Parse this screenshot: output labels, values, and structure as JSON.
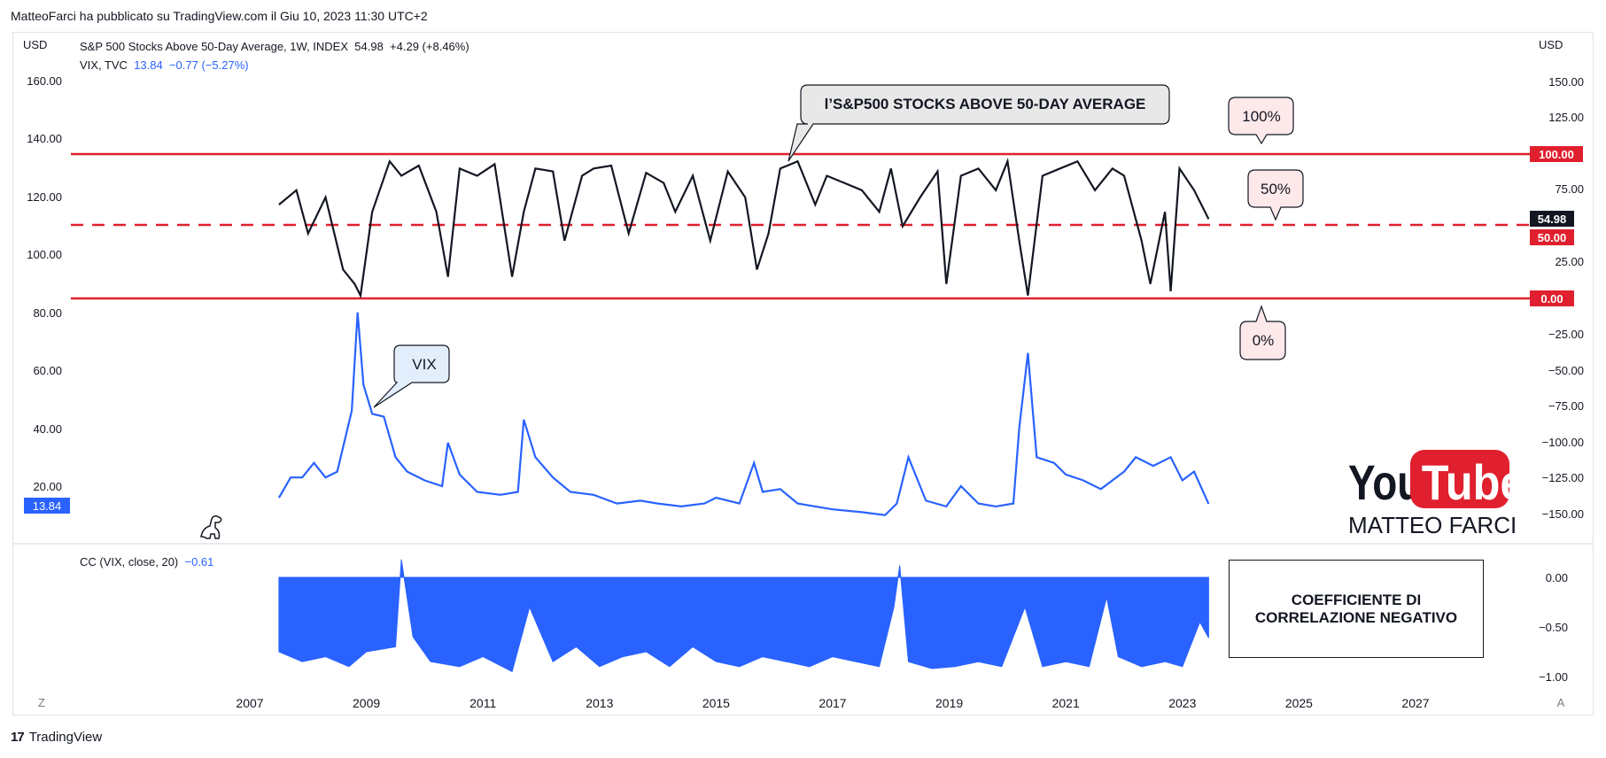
{
  "header": {
    "text": "MatteoFarci ha pubblicato su TradingView.com il Giu 10, 2023 11:30 UTC+2"
  },
  "footer": {
    "brand": "TradingView"
  },
  "colors": {
    "price": "#131722",
    "vix": "#2962ff",
    "hline": "#e0202e",
    "label_bg": "#fde8ea",
    "cc": "#2962ff"
  },
  "legend": {
    "main_name": "S&P 500 Stocks Above 50-Day Average, 1W, INDEX",
    "main_value": "54.98",
    "main_change": "+4.29 (+8.46%)",
    "vix_name": "VIX, TVC",
    "vix_value": "13.84",
    "vix_change": "−0.77 (−5.27%)",
    "cc_name": "CC (VIX, close, 20)",
    "cc_value": "−0.61"
  },
  "left_axis": {
    "unit": "USD",
    "ticks": [
      "160.00",
      "140.00",
      "120.00",
      "100.00",
      "80.00",
      "60.00",
      "40.00",
      "20.00"
    ],
    "last_label": "13.84"
  },
  "right_axis": {
    "unit": "USD",
    "ticks": [
      "150.00",
      "125.00",
      "100.00",
      "75.00",
      "50.00",
      "25.00",
      "0.00",
      "−25.00",
      "−50.00",
      "−75.00",
      "−100.00",
      "−125.00",
      "−150.00"
    ],
    "labels": {
      "last": "54.98",
      "hl_top": "100.00",
      "hl_mid": "50.00",
      "hl_bottom": "0.00"
    }
  },
  "cc_axis": {
    "ticks": [
      "0.00",
      "−0.50",
      "−1.00"
    ]
  },
  "x_axis": {
    "ticks": [
      "2007",
      "2009",
      "2011",
      "2013",
      "2015",
      "2017",
      "2019",
      "2021",
      "2023",
      "2025",
      "2027"
    ],
    "left_btn": "Z",
    "right_btn": "A"
  },
  "annotations": {
    "title_callout": "l’S&P500 STOCKS ABOVE 50-DAY AVERAGE",
    "vix_callout": "VIX",
    "pct100": "100%",
    "pct50": "50%",
    "pct0": "0%",
    "corr_line1": "COEFFICIENTE DI",
    "corr_line2": "CORRELAZIONE NEGATIVO",
    "yt_word1": "You",
    "yt_word2": "Tube",
    "yt_name": "MATTEO FARCI"
  },
  "chart_data": [
    {
      "type": "line",
      "title": "S&P 500 Stocks Above 50-Day Average, 1W, INDEX",
      "x_range": [
        2007.5,
        2023.45
      ],
      "ylim": [
        0,
        100
      ],
      "hlines": [
        100,
        50,
        0
      ],
      "series": [
        {
          "name": "S&P 500 Stocks Above 50-Day Average",
          "x": [
            2007.5,
            2007.8,
            2008.0,
            2008.3,
            2008.6,
            2008.8,
            2008.9,
            2009.1,
            2009.4,
            2009.6,
            2009.9,
            2010.2,
            2010.4,
            2010.6,
            2010.9,
            2011.2,
            2011.5,
            2011.7,
            2011.9,
            2012.2,
            2012.4,
            2012.7,
            2012.9,
            2013.2,
            2013.5,
            2013.8,
            2014.1,
            2014.3,
            2014.6,
            2014.9,
            2015.2,
            2015.5,
            2015.7,
            2015.9,
            2016.1,
            2016.4,
            2016.7,
            2016.9,
            2017.2,
            2017.5,
            2017.8,
            2018.0,
            2018.2,
            2018.5,
            2018.8,
            2018.95,
            2019.2,
            2019.5,
            2019.8,
            2020.0,
            2020.2,
            2020.35,
            2020.6,
            2020.9,
            2021.2,
            2021.5,
            2021.8,
            2022.0,
            2022.3,
            2022.45,
            2022.7,
            2022.8,
            2022.95,
            2023.2,
            2023.45
          ],
          "y": [
            65,
            75,
            45,
            70,
            20,
            10,
            2,
            60,
            95,
            85,
            92,
            60,
            15,
            90,
            85,
            93,
            15,
            60,
            90,
            88,
            40,
            85,
            90,
            92,
            45,
            87,
            80,
            60,
            85,
            40,
            88,
            70,
            20,
            45,
            90,
            95,
            65,
            85,
            80,
            75,
            60,
            90,
            50,
            70,
            88,
            10,
            85,
            90,
            75,
            95,
            40,
            2,
            85,
            90,
            95,
            75,
            90,
            85,
            40,
            10,
            60,
            5,
            90,
            75,
            55
          ]
        }
      ]
    },
    {
      "type": "line",
      "title": "VIX, TVC",
      "x_range": [
        2007.5,
        2023.45
      ],
      "series": [
        {
          "name": "VIX",
          "x": [
            2007.5,
            2007.7,
            2007.9,
            2008.1,
            2008.3,
            2008.5,
            2008.75,
            2008.85,
            2008.95,
            2009.1,
            2009.3,
            2009.5,
            2009.7,
            2010.0,
            2010.3,
            2010.4,
            2010.6,
            2010.9,
            2011.3,
            2011.6,
            2011.7,
            2011.9,
            2012.2,
            2012.5,
            2012.9,
            2013.3,
            2013.7,
            2014.0,
            2014.4,
            2014.8,
            2015.0,
            2015.4,
            2015.65,
            2015.8,
            2016.1,
            2016.4,
            2016.7,
            2017.0,
            2017.5,
            2017.9,
            2018.1,
            2018.3,
            2018.6,
            2018.95,
            2019.2,
            2019.5,
            2019.8,
            2020.1,
            2020.2,
            2020.35,
            2020.5,
            2020.8,
            2021.0,
            2021.3,
            2021.6,
            2022.0,
            2022.2,
            2022.5,
            2022.8,
            2023.0,
            2023.2,
            2023.45
          ],
          "y": [
            16,
            23,
            23,
            28,
            23,
            25,
            46,
            80,
            55,
            45,
            44,
            30,
            25,
            22,
            20,
            35,
            24,
            18,
            17,
            18,
            43,
            30,
            23,
            18,
            17,
            14,
            15,
            14,
            13,
            14,
            16,
            14,
            28,
            18,
            19,
            14,
            13,
            12,
            11,
            10,
            14,
            30,
            15,
            13,
            20,
            14,
            13,
            14,
            40,
            66,
            30,
            28,
            24,
            22,
            19,
            25,
            30,
            27,
            30,
            22,
            25,
            13.84
          ]
        }
      ]
    },
    {
      "type": "area",
      "title": "CC (VIX, close, 20)",
      "x_range": [
        2007.5,
        2023.45
      ],
      "ylim": [
        -1.0,
        0.2
      ],
      "series": [
        {
          "name": "CC (VIX, close, 20)",
          "x": [
            2007.5,
            2007.9,
            2008.3,
            2008.7,
            2009.0,
            2009.5,
            2009.6,
            2009.8,
            2010.1,
            2010.6,
            2011.0,
            2011.5,
            2011.8,
            2012.2,
            2012.6,
            2013.0,
            2013.4,
            2013.8,
            2014.2,
            2014.6,
            2015.0,
            2015.4,
            2015.8,
            2016.2,
            2016.6,
            2017.0,
            2017.4,
            2017.8,
            2018.05,
            2018.15,
            2018.3,
            2018.7,
            2019.1,
            2019.5,
            2019.9,
            2020.3,
            2020.6,
            2021.0,
            2021.4,
            2021.7,
            2021.9,
            2022.3,
            2022.7,
            2023.0,
            2023.3,
            2023.45
          ],
          "y": [
            -0.75,
            -0.85,
            -0.8,
            -0.9,
            -0.75,
            -0.7,
            0.18,
            -0.6,
            -0.85,
            -0.9,
            -0.8,
            -0.95,
            -0.3,
            -0.85,
            -0.7,
            -0.9,
            -0.8,
            -0.75,
            -0.9,
            -0.7,
            -0.85,
            -0.9,
            -0.8,
            -0.85,
            -0.9,
            -0.8,
            -0.85,
            -0.9,
            -0.3,
            0.12,
            -0.85,
            -0.92,
            -0.9,
            -0.85,
            -0.9,
            -0.3,
            -0.9,
            -0.85,
            -0.9,
            -0.2,
            -0.8,
            -0.9,
            -0.85,
            -0.9,
            -0.45,
            -0.61
          ]
        }
      ]
    }
  ]
}
